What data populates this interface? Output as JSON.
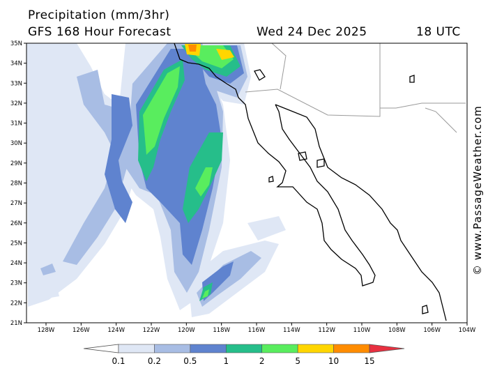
{
  "header": {
    "title": "Precipitation (mm/3hr)",
    "model": "GFS 168 Hour Forecast",
    "date": "Wed 24 Dec 2025",
    "time": "18 UTC"
  },
  "credit": "© www.PassageWeather.com",
  "axes": {
    "lat_labels": [
      "35N",
      "34N",
      "33N",
      "32N",
      "31N",
      "30N",
      "29N",
      "28N",
      "27N",
      "26N",
      "25N",
      "24N",
      "23N",
      "22N",
      "21N"
    ],
    "lon_labels": [
      "128W",
      "126W",
      "124W",
      "122W",
      "120W",
      "118W",
      "116W",
      "114W",
      "112W",
      "110W",
      "108W",
      "106W",
      "104W"
    ]
  },
  "colorbar": {
    "labels": [
      "0.1",
      "0.2",
      "0.5",
      "1",
      "2",
      "5",
      "10",
      "15"
    ],
    "colors": [
      "#ffffff",
      "#dfe7f5",
      "#a8bde4",
      "#5f83cf",
      "#26be8a",
      "#59ed5e",
      "#ffd600",
      "#ff8c00",
      "#e83040"
    ]
  },
  "palette": {
    "lightest": "#dfe7f5",
    "light": "#a8bde4",
    "medium": "#5f83cf",
    "teal": "#26be8a",
    "green": "#59ed5e",
    "yellow": "#ffd600",
    "orange": "#ff8c00",
    "coast": "#000000",
    "border": "#9a9a9a"
  }
}
